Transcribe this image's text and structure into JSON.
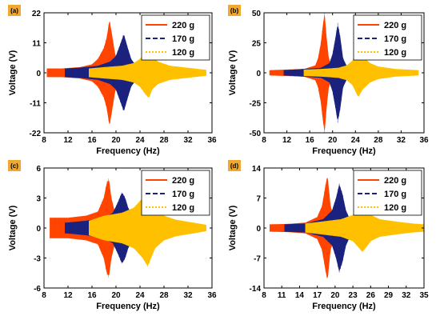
{
  "colors": {
    "220 g": "#FF4500",
    "170 g": "#1A237E",
    "120 g": "#FFC000",
    "panel_label_bg": "#F0A830"
  },
  "chart_data": [
    {
      "type": "area",
      "panel": "(a)",
      "xlabel": "Frequency (Hz)",
      "ylabel": "Voltage (V)",
      "xlim": [
        8,
        36
      ],
      "ylim": [
        -22,
        22
      ],
      "xticks": [
        8,
        12,
        16,
        20,
        24,
        28,
        32,
        36
      ],
      "yticks": [
        22,
        11,
        0,
        -11,
        -22
      ],
      "legend": "top-right",
      "grid": false,
      "series": [
        {
          "name": "220 g",
          "x": [
            8.5,
            11,
            14,
            16,
            17,
            17.5,
            18,
            18.5,
            18.9,
            19.3,
            19.8,
            20.5,
            21.5,
            22.5
          ],
          "amplitude": [
            1.5,
            1.5,
            2,
            3,
            5,
            7,
            9,
            13,
            19,
            14,
            7,
            3,
            2,
            1.5
          ]
        },
        {
          "name": "170 g",
          "x": [
            11.5,
            14,
            17,
            19,
            20,
            20.5,
            21,
            21.3,
            21.8,
            22.5,
            23.5,
            25
          ],
          "amplitude": [
            1.5,
            1.8,
            2.5,
            4,
            6,
            9,
            12,
            14,
            10,
            5,
            2,
            1.5
          ]
        },
        {
          "name": "120 g",
          "x": [
            15.5,
            18,
            21,
            23,
            24,
            24.5,
            25,
            25.5,
            26,
            27,
            29,
            31,
            33,
            35
          ],
          "amplitude": [
            1.5,
            2,
            2.5,
            3.5,
            5,
            6.5,
            8,
            9,
            6,
            4,
            2.5,
            2,
            1.5,
            1
          ]
        }
      ]
    },
    {
      "type": "area",
      "panel": "(b)",
      "xlabel": "Frequency (Hz)",
      "ylabel": "Voltage (V)",
      "xlim": [
        8,
        36
      ],
      "ylim": [
        -50,
        50
      ],
      "xticks": [
        8,
        12,
        16,
        20,
        24,
        28,
        32,
        36
      ],
      "yticks": [
        50,
        25,
        0,
        -25,
        -50
      ],
      "legend": "top-right",
      "grid": false,
      "series": [
        {
          "name": "220 g",
          "x": [
            9,
            12,
            15,
            17,
            17.5,
            18,
            18.3,
            18.6,
            18.9,
            19.3,
            20,
            21
          ],
          "amplitude": [
            2,
            2.5,
            3,
            6,
            12,
            25,
            38,
            48,
            30,
            12,
            4,
            2
          ]
        },
        {
          "name": "170 g",
          "x": [
            11.5,
            15,
            18,
            19.5,
            20,
            20.5,
            20.9,
            21.3,
            21.8,
            22.5,
            23.5
          ],
          "amplitude": [
            2,
            3,
            4,
            8,
            15,
            28,
            40,
            30,
            12,
            5,
            2
          ]
        },
        {
          "name": "120 g",
          "x": [
            15,
            18,
            21,
            22.5,
            23.5,
            24,
            24.5,
            25.2,
            26.5,
            28,
            31,
            35
          ],
          "amplitude": [
            2.5,
            3,
            4,
            6,
            10,
            15,
            20,
            14,
            8,
            5,
            3,
            2
          ]
        }
      ]
    },
    {
      "type": "area",
      "panel": "(c)",
      "xlabel": "Frequency (Hz)",
      "ylabel": "Voltage (V)",
      "xlim": [
        8,
        36
      ],
      "ylim": [
        -6,
        6
      ],
      "xticks": [
        8,
        12,
        16,
        20,
        24,
        28,
        32,
        36
      ],
      "yticks": [
        6,
        3,
        0,
        -3,
        -6
      ],
      "legend": "top-right",
      "grid": false,
      "series": [
        {
          "name": "220 g",
          "x": [
            9,
            12,
            15,
            17,
            18,
            18.5,
            18.8,
            19.2,
            19.8,
            20.5,
            22
          ],
          "amplitude": [
            1,
            1,
            1.2,
            1.6,
            3,
            4.5,
            4.8,
            3,
            1.5,
            0.8,
            0.5
          ]
        },
        {
          "name": "170 g",
          "x": [
            11.5,
            15,
            18,
            19.5,
            20.3,
            21,
            21.5,
            22,
            23,
            24,
            25
          ],
          "amplitude": [
            0.5,
            0.7,
            1,
            1.5,
            2.5,
            3.5,
            3,
            2,
            1,
            0.5,
            0.3
          ]
        },
        {
          "name": "120 g",
          "x": [
            15.5,
            18,
            21,
            23,
            24.5,
            25,
            25.3,
            25.8,
            26.5,
            28,
            30,
            33,
            35
          ],
          "amplitude": [
            0.7,
            1.2,
            1.5,
            2,
            3,
            3.5,
            3.8,
            3,
            2,
            1.2,
            0.8,
            0.5,
            0.3
          ]
        }
      ]
    },
    {
      "type": "area",
      "panel": "(d)",
      "xlabel": "Frequency (Hz)",
      "ylabel": "Voltage (V)",
      "xlim": [
        8,
        35
      ],
      "ylim": [
        -14,
        14
      ],
      "xticks": [
        8,
        11,
        14,
        17,
        20,
        23,
        26,
        29,
        32,
        35
      ],
      "yticks": [
        14,
        7,
        0,
        -7,
        -14
      ],
      "legend": "top-right",
      "grid": false,
      "series": [
        {
          "name": "220 g",
          "x": [
            9,
            12,
            15,
            17,
            17.8,
            18.3,
            18.7,
            19.2,
            20,
            21
          ],
          "amplitude": [
            0.8,
            0.9,
            1.2,
            2.5,
            5,
            9,
            12,
            5,
            2,
            1
          ]
        },
        {
          "name": "170 g",
          "x": [
            11.5,
            15,
            18,
            19.5,
            20.2,
            20.7,
            21.2,
            21.8,
            22.5,
            23.5
          ],
          "amplitude": [
            0.8,
            1,
            2,
            4,
            7,
            10,
            8,
            4,
            2,
            1
          ]
        },
        {
          "name": "120 g",
          "x": [
            15,
            18,
            21,
            23,
            24,
            24.6,
            25.2,
            26,
            27.5,
            30,
            33,
            35
          ],
          "amplitude": [
            1,
            1.5,
            2,
            3,
            4.5,
            5.5,
            4.5,
            3,
            2,
            1.5,
            1,
            0.8
          ]
        }
      ]
    }
  ]
}
